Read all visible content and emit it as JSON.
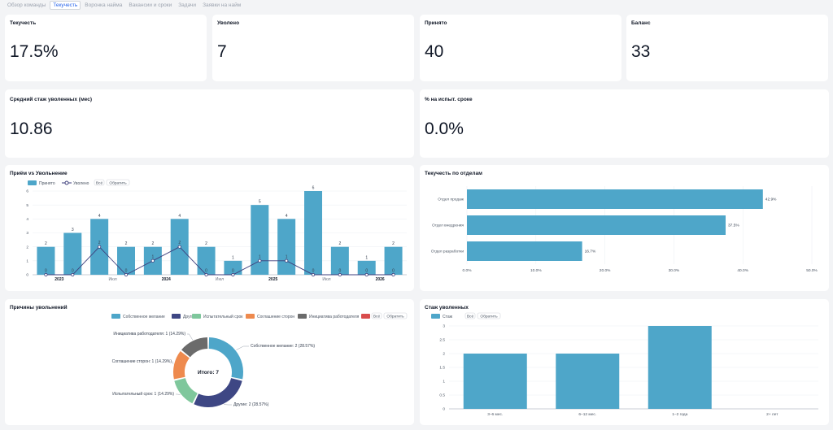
{
  "tabs": [
    {
      "label": "Обзор команды",
      "active": false
    },
    {
      "label": "Текучесть",
      "active": true
    },
    {
      "label": "Воронка найма",
      "active": false
    },
    {
      "label": "Вакансии и сроки",
      "active": false
    },
    {
      "label": "Задачи",
      "active": false
    },
    {
      "label": "Заявки на найм",
      "active": false
    }
  ],
  "kpis": {
    "turnover": {
      "title": "Текучесть",
      "value": "17.5%"
    },
    "fired": {
      "title": "Уволено",
      "value": "7"
    },
    "hired": {
      "title": "Принято",
      "value": "40"
    },
    "balance": {
      "title": "Баланс",
      "value": "33"
    },
    "avg_tenure": {
      "title": "Средний стаж уволенных (мес)",
      "value": "10.86"
    },
    "probation": {
      "title": "% на испыт. сроке",
      "value": "0.0%"
    }
  },
  "colors": {
    "primary": "#4ea6c9",
    "line": "#3e3f7c",
    "navy": "#3e4784",
    "green": "#7fc79c",
    "orange": "#ee8a4e",
    "gray": "#6b6b6b",
    "red": "#d94c4c"
  },
  "legend_controls": {
    "all": "Всё",
    "invert": "Обратить"
  },
  "chart_data": [
    {
      "type": "bar",
      "title": "Приём vs Увольнение",
      "series": [
        {
          "name": "Принято",
          "type": "bar",
          "values": [
            2,
            3,
            4,
            2,
            2,
            4,
            2,
            1,
            5,
            4,
            6,
            2,
            1,
            2
          ]
        },
        {
          "name": "Уволено",
          "type": "line",
          "values": [
            0,
            0,
            2,
            0,
            1,
            2,
            0,
            0,
            1,
            1,
            0,
            0,
            0,
            0
          ]
        }
      ],
      "x_tick_labels": [
        {
          "index": 1,
          "label": "2023",
          "bold": true
        },
        {
          "index": 3,
          "label": "Июл",
          "bold": false
        },
        {
          "index": 5,
          "label": "2024",
          "bold": true
        },
        {
          "index": 7,
          "label": "Июл",
          "bold": false
        },
        {
          "index": 9,
          "label": "2025",
          "bold": true
        },
        {
          "index": 11,
          "label": "Июл",
          "bold": false
        },
        {
          "index": 13,
          "label": "2026",
          "bold": true
        }
      ],
      "y_ticks": [
        0,
        1,
        2,
        3,
        4,
        5,
        6
      ],
      "ylim": [
        0,
        6
      ],
      "grid": true,
      "legend_position": "top-left"
    },
    {
      "type": "bar",
      "orientation": "horizontal",
      "title": "Текучесть по отделам",
      "categories": [
        "Отдел продаж",
        "Отдел внедрения",
        "Отдел разработки"
      ],
      "values": [
        42.9,
        37.5,
        16.7
      ],
      "value_labels": [
        "42.9%",
        "37.5%",
        "16.7%"
      ],
      "x_ticks": [
        "0.0%",
        "10.0%",
        "20.0%",
        "30.0%",
        "40.0%",
        "50.0%"
      ],
      "xlim": [
        0,
        50
      ],
      "grid": true
    },
    {
      "type": "pie",
      "donut": true,
      "title": "Причины увольнений",
      "center_label": "Итого: 7",
      "legend": [
        "Собственное желание",
        "Другие",
        "Испытательный срок",
        "Соглашение сторон",
        "Инициатива работодателя",
        "Всё",
        "Обратить"
      ],
      "slices": [
        {
          "name": "Собственное желание",
          "value": 2,
          "label": "Собственное желание: 2 (28.57%)",
          "color": "#4ea6c9"
        },
        {
          "name": "Другие",
          "value": 2,
          "label": "Другие: 2 (28.57%)",
          "color": "#3e4784"
        },
        {
          "name": "Испытательный срок",
          "value": 1,
          "label": "Испытательный срок: 1 (14.29%)",
          "color": "#7fc79c"
        },
        {
          "name": "Соглашение сторон",
          "value": 1,
          "label": "Соглашение сторон: 1 (14.29%)",
          "color": "#ee8a4e"
        },
        {
          "name": "Инициатива работодателя",
          "value": 1,
          "label": "Инициатива работодателя: 1 (14.29%)",
          "color": "#6b6b6b"
        }
      ],
      "legend_position": "top-center"
    },
    {
      "type": "bar",
      "title": "Стаж уволенных",
      "legend": [
        "Стаж"
      ],
      "categories": [
        "3–6 мес.",
        "6–12 мес.",
        "1–2 года",
        "2+ лет"
      ],
      "values": [
        2,
        2,
        3,
        0
      ],
      "y_ticks": [
        "0",
        "0.5",
        "1",
        "1.5",
        "2",
        "2.5",
        "3"
      ],
      "ylim": [
        0,
        3
      ],
      "grid": true,
      "legend_position": "top-left"
    }
  ]
}
